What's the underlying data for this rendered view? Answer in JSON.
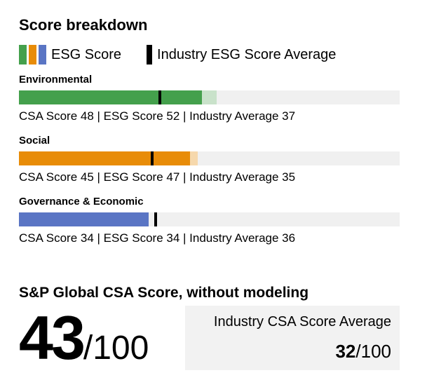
{
  "title": "Score breakdown",
  "legend": {
    "esg_label": "ESG Score",
    "industry_label": "Industry ESG Score Average",
    "swatch_colors": [
      "#44a04c",
      "#e88c08",
      "#5a75c4"
    ],
    "tick_color": "#000000"
  },
  "sections": [
    {
      "label": "Environmental",
      "csa_score": 48,
      "esg_score": 52,
      "industry_average": 37,
      "detail": "CSA Score 48 | ESG Score 52 | Industry Average 37",
      "color": "#44a04c",
      "light_color": "#c9e2ca"
    },
    {
      "label": "Social",
      "csa_score": 45,
      "esg_score": 47,
      "industry_average": 35,
      "detail": "CSA Score 45 | ESG Score 47 | Industry Average 35",
      "color": "#e88c08",
      "light_color": "#f6d8ac"
    },
    {
      "label": "Governance & Economic",
      "csa_score": 34,
      "esg_score": 34,
      "industry_average": 36,
      "detail": "CSA Score 34 | ESG Score 34 | Industry Average 36",
      "color": "#5a75c4",
      "light_color": "#c6cfe9"
    }
  ],
  "summary": {
    "heading": "S&P Global CSA Score, without modeling",
    "score": "43",
    "score_suffix": "/100",
    "industry": {
      "label": "Industry CSA Score Average",
      "value": "32",
      "suffix": "/100"
    }
  },
  "chart_data": {
    "type": "bar",
    "orientation": "horizontal",
    "title": "Score breakdown",
    "categories": [
      "Environmental",
      "Social",
      "Governance & Economic"
    ],
    "series": [
      {
        "name": "CSA Score",
        "values": [
          48,
          45,
          34
        ]
      },
      {
        "name": "ESG Score",
        "values": [
          52,
          47,
          34
        ]
      },
      {
        "name": "Industry ESG Score Average",
        "values": [
          37,
          35,
          36
        ]
      }
    ],
    "xlim": [
      0,
      100
    ],
    "bar_colors": [
      "#44a04c",
      "#e88c08",
      "#5a75c4"
    ],
    "legend_entries": [
      "ESG Score",
      "Industry ESG Score Average"
    ],
    "grid": false,
    "summary_scores": {
      "sp_global_csa_score_without_modeling": 43,
      "industry_csa_score_average": 32,
      "scale_max": 100
    }
  }
}
